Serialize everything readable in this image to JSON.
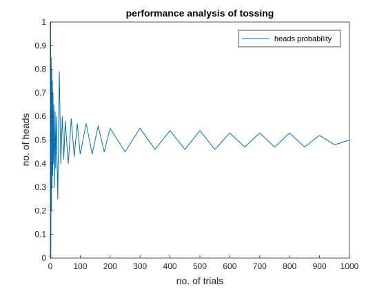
{
  "chart_data": {
    "type": "line",
    "title": "performance analysis of tossing",
    "xlabel": "no. of trials",
    "ylabel": "no. of heads",
    "xlim": [
      0,
      1000
    ],
    "ylim": [
      0,
      1
    ],
    "xticks": [
      0,
      100,
      200,
      300,
      400,
      500,
      600,
      700,
      800,
      900,
      1000
    ],
    "yticks": [
      0,
      0.1,
      0.2,
      0.3,
      0.4,
      0.5,
      0.6,
      0.7,
      0.8,
      0.9,
      1
    ],
    "xtick_labels": [
      "0",
      "100",
      "200",
      "300",
      "400",
      "500",
      "600",
      "700",
      "800",
      "900",
      "1000"
    ],
    "ytick_labels": [
      "0",
      "0.1",
      "0.2",
      "0.3",
      "0.4",
      "0.5",
      "0.6",
      "0.7",
      "0.8",
      "0.9",
      "1"
    ],
    "grid": false,
    "legend_position": "top-right",
    "series": [
      {
        "name": "heads probability",
        "color": "#0072BD",
        "x": [
          1,
          2,
          3,
          4,
          5,
          6,
          7,
          8,
          9,
          10,
          12,
          14,
          16,
          18,
          20,
          25,
          30,
          35,
          40,
          45,
          50,
          60,
          70,
          80,
          90,
          100,
          120,
          140,
          160,
          180,
          200,
          250,
          300,
          350,
          400,
          450,
          500,
          550,
          600,
          650,
          700,
          750,
          800,
          850,
          900,
          950,
          1000
        ],
        "values": [
          1.0,
          0.0,
          0.85,
          0.2,
          0.8,
          0.3,
          0.75,
          0.35,
          0.7,
          0.4,
          0.65,
          0.3,
          0.62,
          0.38,
          0.6,
          0.25,
          0.79,
          0.4,
          0.6,
          0.42,
          0.58,
          0.4,
          0.59,
          0.43,
          0.57,
          0.44,
          0.57,
          0.44,
          0.56,
          0.45,
          0.55,
          0.45,
          0.55,
          0.46,
          0.54,
          0.46,
          0.54,
          0.46,
          0.53,
          0.47,
          0.53,
          0.47,
          0.53,
          0.47,
          0.52,
          0.48,
          0.5
        ]
      }
    ]
  }
}
